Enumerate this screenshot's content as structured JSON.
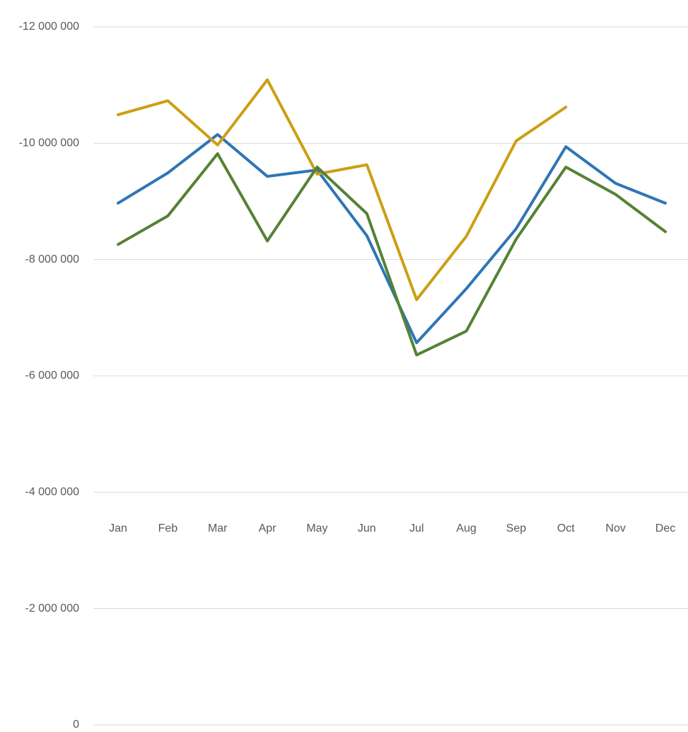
{
  "chart_data": {
    "type": "line",
    "categories": [
      "Jan",
      "Feb",
      "Mar",
      "Apr",
      "May",
      "Jun",
      "Jul",
      "Aug",
      "Sep",
      "Oct",
      "Nov",
      "Dec"
    ],
    "series": [
      {
        "color": "#2e75b6",
        "values": [
          -8970000,
          -9490000,
          -10150000,
          -9430000,
          -9540000,
          -8410000,
          -6570000,
          -7500000,
          -8530000,
          -9940000,
          -9310000,
          -8970000
        ]
      },
      {
        "color": "#cc9f12",
        "values": [
          -10490000,
          -10730000,
          -9970000,
          -11090000,
          -9470000,
          -9630000,
          -7310000,
          -8400000,
          -10040000,
          -10620000,
          null,
          null
        ]
      },
      {
        "color": "#548235",
        "values": [
          -8260000,
          -8750000,
          -9820000,
          -8320000,
          -9590000,
          -8790000,
          -6360000,
          -6770000,
          -8350000,
          -9590000,
          -9120000,
          -8480000
        ]
      }
    ],
    "ylim": [
      0,
      -12000000
    ],
    "yticks": [
      0,
      {
        "value": -2000000,
        "label": "-2 000 000"
      },
      {
        "value": -4000000,
        "label": "-4 000 000"
      },
      {
        "value": -6000000,
        "label": "-6 000 000"
      },
      {
        "value": -8000000,
        "label": "-8 000 000"
      },
      {
        "value": -10000000,
        "label": "-10 000 000"
      },
      {
        "value": -12000000,
        "label": "-12 000 000"
      }
    ],
    "grid": true
  }
}
